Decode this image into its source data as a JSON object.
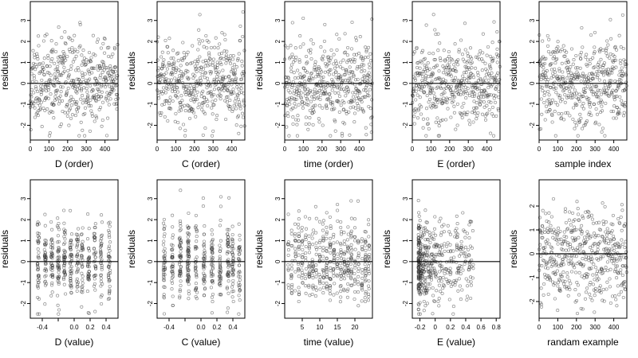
{
  "colors": {
    "points": "#333333",
    "axes": "#000000",
    "background": "#ffffff"
  },
  "chart_data": [
    {
      "type": "scatter",
      "xlabel": "D (order)",
      "ylabel": "residuals",
      "xlim": [
        0,
        470
      ],
      "ylim": [
        -2.7,
        3.9
      ],
      "xticks": [
        0,
        100,
        200,
        300,
        400
      ],
      "yticks": [
        -2,
        -1,
        0,
        1,
        2,
        3
      ],
      "hline": 0,
      "gen": {
        "mode": "index",
        "n": 470,
        "spread": 1.0,
        "seed": 11
      }
    },
    {
      "type": "scatter",
      "xlabel": "C (order)",
      "ylabel": "residuals",
      "xlim": [
        0,
        470
      ],
      "ylim": [
        -2.7,
        3.9
      ],
      "xticks": [
        0,
        100,
        200,
        300,
        400
      ],
      "yticks": [
        -2,
        -1,
        0,
        1,
        2,
        3
      ],
      "hline": 0,
      "gen": {
        "mode": "index",
        "n": 470,
        "spread": 1.0,
        "seed": 23
      }
    },
    {
      "type": "scatter",
      "xlabel": "time (order)",
      "ylabel": "residuals",
      "xlim": [
        0,
        470
      ],
      "ylim": [
        -2.7,
        3.9
      ],
      "xticks": [
        0,
        100,
        200,
        300,
        400
      ],
      "yticks": [
        -2,
        -1,
        0,
        1,
        2,
        3
      ],
      "hline": 0,
      "gen": {
        "mode": "index",
        "n": 470,
        "spread": 1.0,
        "seed": 37
      }
    },
    {
      "type": "scatter",
      "xlabel": "E (order)",
      "ylabel": "residuals",
      "xlim": [
        0,
        470
      ],
      "ylim": [
        -2.7,
        3.9
      ],
      "xticks": [
        0,
        100,
        200,
        300,
        400
      ],
      "yticks": [
        -2,
        -1,
        0,
        1,
        2,
        3
      ],
      "hline": 0,
      "gen": {
        "mode": "index",
        "n": 470,
        "spread": 1.0,
        "seed": 41
      }
    },
    {
      "type": "scatter",
      "xlabel": "sample index",
      "ylabel": "residuals",
      "xlim": [
        0,
        470
      ],
      "ylim": [
        -2.7,
        3.9
      ],
      "xticks": [
        0,
        100,
        200,
        300,
        400
      ],
      "yticks": [
        -2,
        -1,
        0,
        1,
        2,
        3
      ],
      "hline": 0,
      "gen": {
        "mode": "index",
        "n": 470,
        "spread": 1.0,
        "seed": 53
      }
    },
    {
      "type": "scatter",
      "xlabel": "D (value)",
      "ylabel": "residuals",
      "xlim": [
        -0.55,
        0.55
      ],
      "ylim": [
        -2.7,
        3.9
      ],
      "xticks": [
        -0.4,
        -0.2,
        0.0,
        0.2,
        0.4
      ],
      "xtick_labels": [
        "-0.4",
        "",
        "0.0",
        "0.2",
        "0.4"
      ],
      "yticks": [
        -2,
        -1,
        0,
        1,
        2,
        3
      ],
      "hline": 0,
      "gen": {
        "mode": "clusters",
        "n": 470,
        "spread": 1.0,
        "seed": 61,
        "clusters": [
          -0.45,
          -0.36,
          -0.28,
          -0.2,
          -0.12,
          -0.04,
          0.04,
          0.1,
          0.18,
          0.26,
          0.34,
          0.44
        ],
        "jitter": 0.012
      }
    },
    {
      "type": "scatter",
      "xlabel": "C (value)",
      "ylabel": "residuals",
      "xlim": [
        -0.55,
        0.55
      ],
      "ylim": [
        -2.7,
        3.9
      ],
      "xticks": [
        -0.4,
        -0.2,
        0.0,
        0.2,
        0.4
      ],
      "xtick_labels": [
        "-0.4",
        "",
        "0.0",
        "0.2",
        "0.4"
      ],
      "yticks": [
        -2,
        -1,
        0,
        1,
        2,
        3
      ],
      "hline": 0,
      "gen": {
        "mode": "clusters",
        "n": 470,
        "spread": 1.0,
        "seed": 71,
        "clusters": [
          -0.46,
          -0.36,
          -0.26,
          -0.16,
          -0.06,
          0.04,
          0.14,
          0.24,
          0.34,
          0.4,
          0.48
        ],
        "jitter": 0.012
      }
    },
    {
      "type": "scatter",
      "xlabel": "time (value)",
      "ylabel": "residuals",
      "xlim": [
        0,
        25
      ],
      "ylim": [
        -2.7,
        3.9
      ],
      "xticks": [
        5,
        10,
        15,
        20
      ],
      "yticks": [
        -2,
        -1,
        0,
        1,
        2,
        3
      ],
      "hline": 0,
      "gen": {
        "mode": "clusters",
        "n": 470,
        "spread": 1.0,
        "seed": 83,
        "clusters": [
          1,
          2,
          3,
          4,
          5,
          6,
          7,
          8,
          9,
          10,
          11,
          12,
          13,
          14,
          15,
          16,
          17,
          18,
          19,
          20,
          21,
          22,
          23,
          24
        ],
        "jitter": 0.15
      }
    },
    {
      "type": "scatter",
      "xlabel": "E (value)",
      "ylabel": "residuals",
      "xlim": [
        -0.3,
        0.85
      ],
      "ylim": [
        -2.7,
        3.9
      ],
      "xticks": [
        -0.2,
        0.0,
        0.2,
        0.4,
        0.6,
        0.8
      ],
      "yticks": [
        -2,
        -1,
        0,
        1,
        2,
        3
      ],
      "hline": 0,
      "gen": {
        "mode": "skew",
        "n": 470,
        "spread": 1.0,
        "seed": 97,
        "xmin": -0.22,
        "xmax": 0.5
      }
    },
    {
      "type": "scatter",
      "xlabel": "randam example",
      "ylabel": "residuals",
      "xlim": [
        0,
        470
      ],
      "ylim": [
        -2.7,
        3.1
      ],
      "xticks": [
        0,
        100,
        200,
        300,
        400
      ],
      "yticks": [
        -2,
        -1,
        0,
        1,
        2
      ],
      "hline": 0,
      "gen": {
        "mode": "index",
        "n": 470,
        "spread": 1.0,
        "seed": 101
      }
    }
  ]
}
